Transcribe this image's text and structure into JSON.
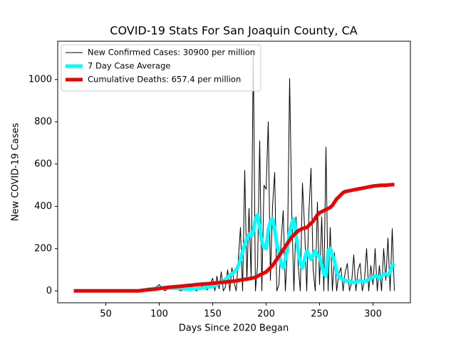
{
  "chart_data": {
    "type": "line",
    "title": "COVID-19 Stats For San Joaquin County, CA",
    "x_label": "Days Since 2020 Began",
    "y_label": "New COVID-19 Cases",
    "xlim": [
      5,
      335
    ],
    "ylim": [
      -56,
      1181
    ],
    "xticks": [
      50,
      100,
      150,
      200,
      250,
      300
    ],
    "yticks": [
      0,
      200,
      400,
      600,
      800,
      1000
    ],
    "legend": "upper left",
    "x": [
      20,
      25,
      30,
      35,
      40,
      45,
      50,
      55,
      60,
      65,
      70,
      75,
      80,
      85,
      90,
      95,
      100,
      105,
      110,
      115,
      120,
      125,
      130,
      135,
      140,
      145,
      150,
      152,
      154,
      156,
      158,
      160,
      162,
      164,
      166,
      168,
      170,
      172,
      174,
      176,
      178,
      180,
      182,
      184,
      186,
      188,
      190,
      192,
      194,
      196,
      198,
      200,
      202,
      204,
      206,
      208,
      210,
      212,
      214,
      216,
      218,
      220,
      222,
      224,
      226,
      228,
      230,
      232,
      234,
      236,
      238,
      240,
      242,
      244,
      246,
      248,
      250,
      252,
      254,
      256,
      258,
      260,
      262,
      264,
      266,
      268,
      270,
      272,
      274,
      276,
      278,
      280,
      282,
      284,
      286,
      288,
      290,
      292,
      294,
      296,
      298,
      300,
      302,
      304,
      306,
      308,
      310,
      312,
      314,
      316,
      318,
      320
    ],
    "series": [
      {
        "name": "New Confirmed Cases: 30900 per million",
        "color": "#000000",
        "width": 1,
        "values": [
          0,
          0,
          0,
          0,
          0,
          0,
          0,
          0,
          0,
          0,
          0,
          0,
          0,
          5,
          0,
          12,
          30,
          0,
          15,
          20,
          0,
          10,
          20,
          0,
          25,
          5,
          60,
          0,
          70,
          10,
          90,
          0,
          20,
          100,
          0,
          110,
          40,
          0,
          150,
          300,
          0,
          570,
          50,
          390,
          60,
          1125,
          0,
          120,
          710,
          0,
          500,
          480,
          800,
          50,
          400,
          560,
          0,
          30,
          230,
          380,
          0,
          200,
          1005,
          370,
          0,
          350,
          120,
          0,
          510,
          300,
          0,
          370,
          580,
          100,
          0,
          420,
          30,
          350,
          0,
          680,
          0,
          300,
          0,
          180,
          0,
          80,
          110,
          0,
          90,
          130,
          0,
          40,
          170,
          0,
          100,
          130,
          0,
          50,
          200,
          0,
          120,
          30,
          200,
          0,
          120,
          0,
          200,
          50,
          250,
          0,
          295,
          0
        ]
      },
      {
        "name": "7 Day Case Average",
        "color": "#00ffff",
        "width": 5,
        "values": [
          0,
          0,
          0,
          0,
          0,
          0,
          0,
          0,
          0,
          0,
          0,
          0,
          0,
          3,
          8,
          12,
          14,
          15,
          14,
          13,
          12,
          10,
          10,
          12,
          14,
          18,
          22,
          25,
          30,
          35,
          40,
          45,
          55,
          65,
          75,
          80,
          90,
          100,
          120,
          150,
          190,
          220,
          250,
          270,
          260,
          280,
          340,
          360,
          300,
          230,
          210,
          200,
          290,
          330,
          340,
          290,
          220,
          180,
          130,
          110,
          150,
          210,
          280,
          320,
          340,
          260,
          190,
          130,
          110,
          150,
          190,
          170,
          150,
          170,
          190,
          170,
          160,
          120,
          80,
          70,
          190,
          200,
          170,
          140,
          90,
          70,
          60,
          55,
          50,
          45,
          45,
          42,
          40,
          40,
          45,
          50,
          45,
          45,
          50,
          55,
          60,
          65,
          70,
          70,
          60,
          70,
          80,
          80,
          75,
          90,
          120,
          130
        ]
      },
      {
        "name": "Cumulative Deaths: 657.4 per million",
        "color": "#ee0000",
        "width": 5,
        "values": [
          0,
          0,
          0,
          0,
          0,
          0,
          0,
          0,
          0,
          0,
          0,
          0,
          0,
          3,
          6,
          8,
          12,
          15,
          18,
          20,
          22,
          25,
          27,
          30,
          32,
          34,
          36,
          37,
          38,
          39,
          40,
          41,
          42,
          43,
          45,
          46,
          47,
          48,
          50,
          52,
          53,
          55,
          56,
          58,
          60,
          62,
          65,
          70,
          75,
          80,
          85,
          90,
          100,
          110,
          120,
          135,
          150,
          165,
          180,
          195,
          210,
          225,
          240,
          255,
          265,
          275,
          285,
          290,
          295,
          298,
          300,
          310,
          320,
          330,
          345,
          360,
          370,
          375,
          380,
          385,
          390,
          395,
          405,
          420,
          435,
          445,
          455,
          465,
          470,
          472,
          474,
          476,
          478,
          480,
          482,
          484,
          486,
          488,
          490,
          492,
          494,
          496,
          497,
          498,
          499,
          500,
          500,
          500,
          501,
          502,
          503,
          503
        ]
      }
    ]
  }
}
